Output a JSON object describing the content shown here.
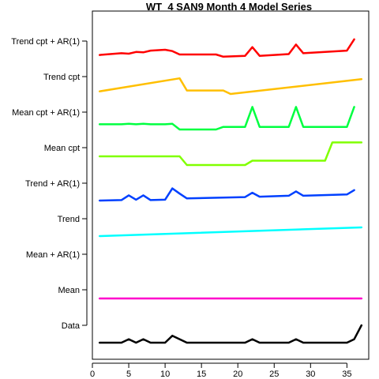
{
  "chart_data": {
    "type": "line",
    "title": "WT_4 SAN9 Month 4 Model Series",
    "xlim": [
      0,
      38
    ],
    "x_ticks": [
      0,
      5,
      10,
      15,
      20,
      25,
      30,
      35
    ],
    "series": [
      {
        "name": "Data",
        "color": "#000000",
        "points": [
          [
            1,
            0
          ],
          [
            4,
            0
          ],
          [
            5,
            0.4
          ],
          [
            6,
            0
          ],
          [
            7,
            0.4
          ],
          [
            8,
            0
          ],
          [
            10,
            0
          ],
          [
            11,
            0.8
          ],
          [
            13,
            0
          ],
          [
            21,
            0
          ],
          [
            22,
            0.4
          ],
          [
            23,
            0
          ],
          [
            27,
            0
          ],
          [
            28,
            0.4
          ],
          [
            29,
            0
          ],
          [
            35,
            0
          ],
          [
            36,
            0.4
          ],
          [
            37,
            2.0
          ]
        ]
      },
      {
        "name": "Mean",
        "color": "#ff00cc",
        "points": [
          [
            1,
            1
          ],
          [
            37,
            1
          ]
        ]
      },
      {
        "name": "Mean + AR(1)",
        "color": "#0000ff",
        "points": []
      },
      {
        "name": "Trend",
        "color": "#00ffff",
        "points": [
          [
            1,
            0
          ],
          [
            37,
            1
          ]
        ]
      },
      {
        "name": "Trend + AR(1)",
        "color": "#0040ff",
        "points": [
          [
            1,
            0
          ],
          [
            4,
            0.05
          ],
          [
            5,
            0.6
          ],
          [
            6,
            0.1
          ],
          [
            7,
            0.6
          ],
          [
            8,
            0.05
          ],
          [
            10,
            0.1
          ],
          [
            11,
            1.4
          ],
          [
            12,
            0.8
          ],
          [
            13,
            0.25
          ],
          [
            21,
            0.4
          ],
          [
            22,
            0.9
          ],
          [
            23,
            0.45
          ],
          [
            27,
            0.55
          ],
          [
            28,
            1.05
          ],
          [
            29,
            0.55
          ],
          [
            35,
            0.7
          ],
          [
            36,
            1.2
          ]
        ]
      },
      {
        "name": "Mean cpt",
        "color": "#80ff00",
        "points": [
          [
            1,
            1
          ],
          [
            12,
            1
          ],
          [
            13,
            0
          ],
          [
            21,
            0
          ],
          [
            22,
            0.5
          ],
          [
            32,
            0.5
          ],
          [
            33,
            2.6
          ],
          [
            37,
            2.6
          ]
        ]
      },
      {
        "name": "Mean cpt + AR(1)",
        "color": "#00ff40",
        "points": [
          [
            1,
            0.6
          ],
          [
            4,
            0.6
          ],
          [
            5,
            0.65
          ],
          [
            6,
            0.6
          ],
          [
            7,
            0.65
          ],
          [
            8,
            0.6
          ],
          [
            10,
            0.6
          ],
          [
            11,
            0.65
          ],
          [
            12,
            0
          ],
          [
            17,
            0
          ],
          [
            18,
            0.3
          ],
          [
            21,
            0.3
          ],
          [
            22,
            2.6
          ],
          [
            23,
            0.3
          ],
          [
            27,
            0.3
          ],
          [
            28,
            2.6
          ],
          [
            29,
            0.3
          ],
          [
            35,
            0.3
          ],
          [
            36,
            2.6
          ]
        ]
      },
      {
        "name": "Trend cpt",
        "color": "#ffbf00",
        "points": [
          [
            1,
            0.3
          ],
          [
            12,
            1.8
          ],
          [
            13,
            0.4
          ],
          [
            18,
            0.4
          ],
          [
            19,
            0
          ],
          [
            37,
            1.7
          ]
        ]
      },
      {
        "name": "Trend cpt + AR(1)",
        "color": "#ff0000",
        "points": [
          [
            1,
            0.4
          ],
          [
            4,
            0.6
          ],
          [
            5,
            0.55
          ],
          [
            6,
            0.75
          ],
          [
            7,
            0.7
          ],
          [
            8,
            0.9
          ],
          [
            10,
            1.0
          ],
          [
            11,
            0.85
          ],
          [
            12,
            0.45
          ],
          [
            17,
            0.45
          ],
          [
            18,
            0.2
          ],
          [
            21,
            0.3
          ],
          [
            22,
            1.3
          ],
          [
            23,
            0.3
          ],
          [
            27,
            0.5
          ],
          [
            28,
            1.6
          ],
          [
            29,
            0.6
          ],
          [
            35,
            0.9
          ],
          [
            36,
            2.2
          ]
        ]
      }
    ]
  }
}
